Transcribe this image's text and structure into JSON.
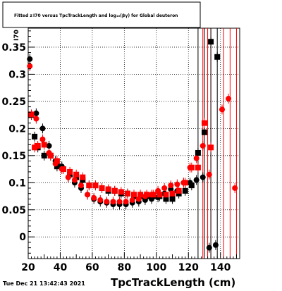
{
  "title": "Fitted  z I70  versus  TpcTrackLength and log₁₀(βγ) for Global deuteron",
  "timestamp": "Tue Dec 21 13:42:43 2021",
  "colors": {
    "black": "#000000",
    "red": "#ff0000",
    "grid": "#000000"
  },
  "chart_data": {
    "type": "scatter",
    "xlabel": "TpcTrackLength (cm)",
    "ylabel": "I70",
    "xlim": [
      20,
      152
    ],
    "ylim": [
      -0.04,
      0.385
    ],
    "xticks": [
      20,
      40,
      60,
      80,
      100,
      120,
      140
    ],
    "yticks": [
      0,
      0.05,
      0.1,
      0.15,
      0.2,
      0.25,
      0.3,
      0.35
    ],
    "ytick_labels": [
      "0",
      "0.05",
      "0.1",
      "0.15",
      "0.2",
      "0.25",
      "0.3",
      "0.35"
    ],
    "grid": true,
    "series": [
      {
        "color": "#000000",
        "marker": "square",
        "points": [
          [
            22,
            0.225
          ],
          [
            24,
            0.185
          ],
          [
            26,
            0.165
          ],
          [
            30,
            0.15
          ],
          [
            34,
            0.15
          ],
          [
            38,
            0.13
          ],
          [
            42,
            0.125
          ],
          [
            46,
            0.115
          ],
          [
            50,
            0.11
          ],
          [
            54,
            0.105
          ],
          [
            58,
            0.095
          ],
          [
            62,
            0.095
          ],
          [
            66,
            0.09
          ],
          [
            70,
            0.085
          ],
          [
            74,
            0.085
          ],
          [
            78,
            0.08
          ],
          [
            82,
            0.08
          ],
          [
            86,
            0.075
          ],
          [
            90,
            0.075
          ],
          [
            94,
            0.075
          ],
          [
            98,
            0.075
          ],
          [
            102,
            0.075
          ],
          [
            106,
            0.07
          ],
          [
            110,
            0.07
          ],
          [
            114,
            0.08
          ],
          [
            118,
            0.085
          ],
          [
            122,
            0.095
          ],
          [
            126,
            0.155
          ],
          [
            130,
            0.193
          ],
          [
            134,
            0.36
          ],
          [
            138,
            0.332
          ]
        ]
      },
      {
        "color": "#000000",
        "marker": "circle",
        "points": [
          [
            21,
            0.328
          ],
          [
            25,
            0.228
          ],
          [
            29,
            0.2
          ],
          [
            33,
            0.168
          ],
          [
            37,
            0.14
          ],
          [
            41,
            0.13
          ],
          [
            45,
            0.11
          ],
          [
            49,
            0.1
          ],
          [
            53,
            0.09
          ],
          [
            57,
            0.078
          ],
          [
            61,
            0.07
          ],
          [
            65,
            0.065
          ],
          [
            69,
            0.063
          ],
          [
            73,
            0.06
          ],
          [
            77,
            0.06
          ],
          [
            81,
            0.06
          ],
          [
            85,
            0.063
          ],
          [
            89,
            0.065
          ],
          [
            93,
            0.068
          ],
          [
            97,
            0.07
          ],
          [
            101,
            0.073
          ],
          [
            105,
            0.08
          ],
          [
            109,
            0.088
          ],
          [
            113,
            0.085
          ],
          [
            117,
            0.1
          ],
          [
            121,
            0.1
          ],
          [
            125,
            0.105
          ],
          [
            129,
            0.11
          ],
          [
            133,
            -0.02
          ],
          [
            137,
            -0.015
          ]
        ]
      },
      {
        "color": "#ff0000",
        "marker": "square",
        "points": [
          [
            22,
            0.226
          ],
          [
            24,
            0.165
          ],
          [
            26,
            0.168
          ],
          [
            30,
            0.17
          ],
          [
            34,
            0.15
          ],
          [
            38,
            0.14
          ],
          [
            42,
            0.125
          ],
          [
            46,
            0.12
          ],
          [
            50,
            0.115
          ],
          [
            54,
            0.11
          ],
          [
            58,
            0.095
          ],
          [
            62,
            0.095
          ],
          [
            66,
            0.09
          ],
          [
            70,
            0.088
          ],
          [
            74,
            0.085
          ],
          [
            78,
            0.083
          ],
          [
            82,
            0.08
          ],
          [
            86,
            0.078
          ],
          [
            90,
            0.078
          ],
          [
            94,
            0.078
          ],
          [
            98,
            0.078
          ],
          [
            102,
            0.078
          ],
          [
            106,
            0.078
          ],
          [
            110,
            0.08
          ],
          [
            114,
            0.085
          ],
          [
            118,
            0.1
          ],
          [
            122,
            0.128
          ],
          [
            126,
            0.128
          ],
          [
            130,
            0.21
          ],
          [
            134,
            0.165
          ]
        ]
      },
      {
        "color": "#ff0000",
        "marker": "circle",
        "points": [
          [
            21,
            0.315
          ],
          [
            25,
            0.218
          ],
          [
            29,
            0.18
          ],
          [
            33,
            0.155
          ],
          [
            37,
            0.135
          ],
          [
            41,
            0.125
          ],
          [
            45,
            0.11
          ],
          [
            49,
            0.105
          ],
          [
            53,
            0.095
          ],
          [
            57,
            0.078
          ],
          [
            61,
            0.072
          ],
          [
            65,
            0.068
          ],
          [
            69,
            0.065
          ],
          [
            73,
            0.065
          ],
          [
            77,
            0.065
          ],
          [
            81,
            0.065
          ],
          [
            85,
            0.068
          ],
          [
            89,
            0.07
          ],
          [
            93,
            0.075
          ],
          [
            97,
            0.078
          ],
          [
            101,
            0.085
          ],
          [
            105,
            0.09
          ],
          [
            109,
            0.095
          ],
          [
            113,
            0.097
          ],
          [
            117,
            0.1
          ],
          [
            121,
            0.128
          ],
          [
            125,
            0.145
          ],
          [
            129,
            0.168
          ],
          [
            133,
            0.115
          ],
          [
            141,
            0.235
          ],
          [
            145,
            0.255
          ],
          [
            149,
            0.09
          ]
        ]
      }
    ],
    "red_error_bars": [
      129,
      132,
      134,
      142,
      146,
      150
    ],
    "black_error_bars": [
      126,
      130,
      134,
      138
    ]
  }
}
